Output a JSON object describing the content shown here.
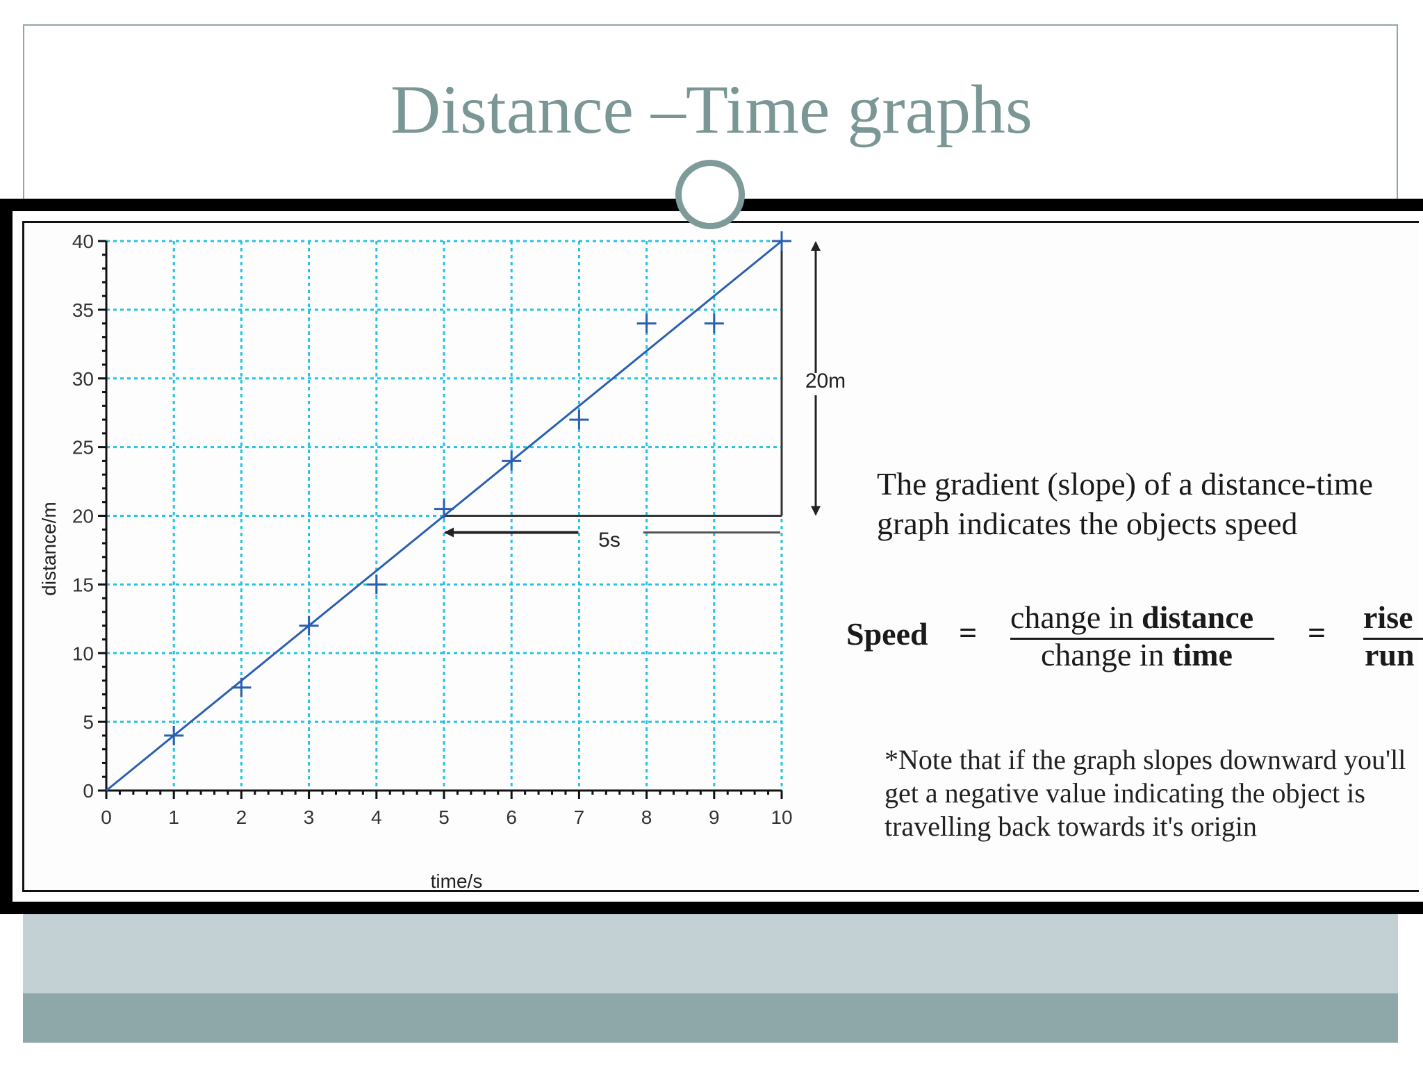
{
  "slide": {
    "title": "Distance –Time graphs",
    "colors": {
      "title": "#7a9796",
      "band_light": "#c3d1d4",
      "band_dark": "#8ea8aa"
    }
  },
  "explanation": {
    "gradient_text": "The gradient (slope) of a distance-time graph indicates the objects speed",
    "formula": {
      "lhs": "Speed",
      "equals": "=",
      "numerator_prefix": "change in ",
      "numerator_bold": "distance",
      "denominator_prefix": "change in ",
      "denominator_bold": "time",
      "rise": "rise",
      "run": "run"
    },
    "note": "*Note that if the graph slopes downward you'll get a negative value indicating the object is travelling back towards it's origin"
  },
  "chart_data": {
    "type": "scatter",
    "xlabel": "time/s",
    "ylabel": "distance/m",
    "xlim": [
      0,
      10
    ],
    "ylim": [
      0,
      40
    ],
    "xticks": [
      "0",
      "1",
      "2",
      "3",
      "4",
      "5",
      "6",
      "7",
      "8",
      "9",
      "10"
    ],
    "yticks": [
      "0",
      "5",
      "10",
      "15",
      "20",
      "25",
      "30",
      "35",
      "40"
    ],
    "grid": true,
    "grid_color": "#22c3e6",
    "series": [
      {
        "type": "scatter",
        "marker": "+",
        "color": "#2b5fb0",
        "points": [
          [
            1,
            4
          ],
          [
            2,
            7.5
          ],
          [
            3,
            12
          ],
          [
            4,
            15
          ],
          [
            5,
            20.5
          ],
          [
            6,
            24
          ],
          [
            7,
            27
          ],
          [
            8,
            34
          ],
          [
            9,
            34
          ],
          [
            10,
            40
          ]
        ]
      },
      {
        "type": "line",
        "color": "#2b5fb0",
        "points": [
          [
            0,
            0
          ],
          [
            10,
            40
          ]
        ]
      }
    ],
    "annotations": {
      "rise_label": "20m",
      "run_label": "5s",
      "rise_from": [
        10,
        20
      ],
      "rise_to": [
        10,
        40
      ],
      "run_from": [
        5,
        20
      ],
      "run_to": [
        10,
        20
      ]
    }
  }
}
